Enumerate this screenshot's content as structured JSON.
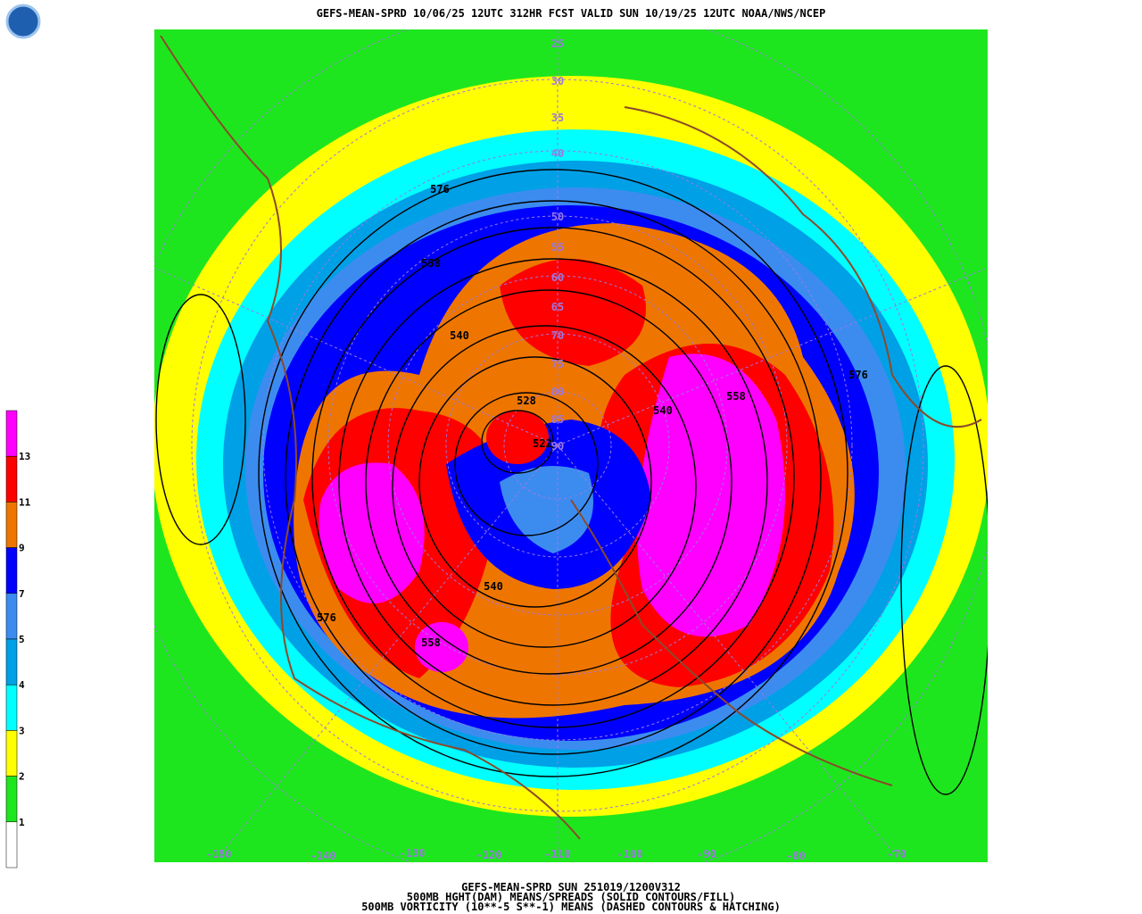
{
  "header": {
    "title": "GEFS-MEAN-SPRD 10/06/25 12UTC 312HR FCST VALID SUN 10/19/25 12UTC NOAA/NWS/NCEP"
  },
  "colorbar": {
    "labels": [
      13,
      11,
      9,
      7,
      5,
      4,
      3,
      2,
      1
    ],
    "colors": [
      "#ff00ff",
      "#ff0000",
      "#ee7600",
      "#0000ff",
      "#3c8cf0",
      "#00a0e6",
      "#00ffff",
      "#ffff00",
      "#1ee61e",
      "#ffffff"
    ]
  },
  "latitude_labels": [
    25,
    30,
    35,
    40,
    50,
    55,
    60,
    65,
    70,
    75,
    80,
    85,
    90
  ],
  "longitude_labels": [
    -150,
    -140,
    -130,
    -120,
    -110,
    -100,
    -90,
    -80,
    -70
  ],
  "contour_labels": [
    576,
    558,
    540,
    528,
    522,
    540,
    558,
    576,
    540,
    576,
    558
  ],
  "footer": {
    "lines": [
      "GEFS-MEAN-SPRD SUN 251019/1200V312",
      "500MB HGHT(DAM) MEANS/SPREADS (SOLID CONTOURS/FILL)",
      "500MB VORTICITY (10**-5 S**-1) MEANS (DASHED CONTOURS & HATCHING)"
    ]
  }
}
